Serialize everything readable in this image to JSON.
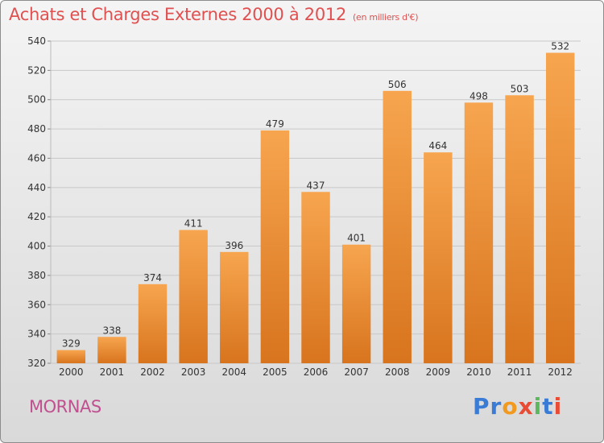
{
  "header": {
    "title": "Achats et Charges Externes 2000 à 2012",
    "subtitle": "(en milliers d'€)"
  },
  "footer": {
    "city": "MORNAS",
    "logo_letters": [
      {
        "ch": "P",
        "color": "#3a7bd5"
      },
      {
        "ch": "r",
        "color": "#3a7bd5"
      },
      {
        "ch": "o",
        "color": "#f29a1f"
      },
      {
        "ch": "x",
        "color": "#e94b35"
      },
      {
        "ch": "i",
        "color": "#5cb85c"
      },
      {
        "ch": "t",
        "color": "#3a7bd5"
      },
      {
        "ch": "i",
        "color": "#e94b35"
      }
    ]
  },
  "colors": {
    "bar_top": "#f7a54f",
    "bar_bottom": "#d8741e",
    "grid": "#c8c8c8",
    "axis_text": "#333333"
  },
  "chart_data": {
    "type": "bar",
    "title": "Achats et Charges Externes 2000 à 2012",
    "subtitle": "(en milliers d'€)",
    "categories": [
      "2000",
      "2001",
      "2002",
      "2003",
      "2004",
      "2005",
      "2006",
      "2007",
      "2008",
      "2009",
      "2010",
      "2011",
      "2012"
    ],
    "values": [
      329,
      338,
      374,
      411,
      396,
      479,
      437,
      401,
      506,
      464,
      498,
      503,
      532
    ],
    "ylim": [
      320,
      540
    ],
    "yticks": [
      320,
      340,
      360,
      380,
      400,
      420,
      440,
      460,
      480,
      500,
      520,
      540
    ],
    "grid": true,
    "xlabel": "",
    "ylabel": ""
  }
}
